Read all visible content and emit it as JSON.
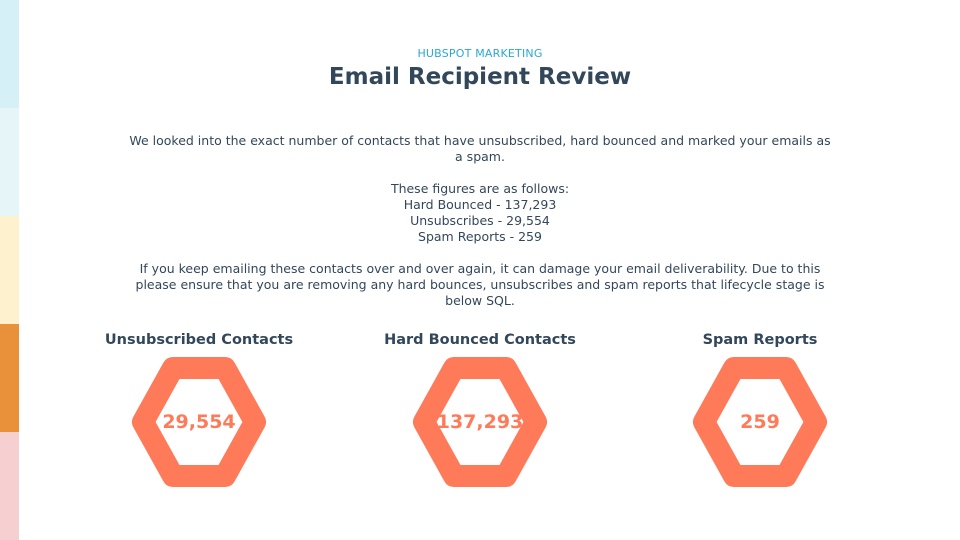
{
  "colors": {
    "accent": "#ff7a59",
    "heading": "#33475b",
    "eyebrow": "#2aa7d6",
    "stripes": [
      "#d6f0f7",
      "#e5f5f8",
      "#fef1cd",
      "#e8913a",
      "#f6cfd0"
    ]
  },
  "header": {
    "eyebrow": "HUBSPOT MARKETING",
    "title": "Email Recipient Review"
  },
  "body": {
    "intro": "We looked into the exact number of contacts that have unsubscribed, hard bounced and marked your emails as a spam.",
    "figures_heading": "These figures are as follows:",
    "figures": [
      "Hard Bounced - 137,293",
      "Unsubscribes - 29,554",
      "Spam Reports - 259"
    ],
    "advice": "If you keep emailing these contacts over and over again, it can damage your email deliverability. Due to this please ensure that you are removing any hard bounces, unsubscribes and spam reports that lifecycle stage is below SQL."
  },
  "metrics": [
    {
      "label": "Unsubscribed Contacts",
      "value": "29,554",
      "icon": "hexagon-icon"
    },
    {
      "label": "Hard Bounced Contacts",
      "value": "137,293",
      "icon": "hexagon-icon"
    },
    {
      "label": "Spam Reports",
      "value": "259",
      "icon": "hexagon-icon"
    }
  ]
}
